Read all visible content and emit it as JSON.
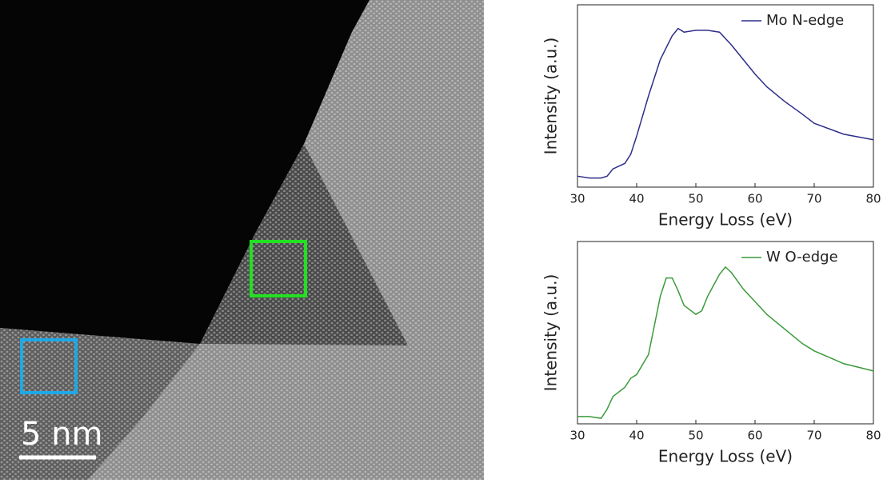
{
  "image": {
    "scale_bar_label": "5 nm"
  },
  "chart_data": [
    {
      "type": "line",
      "xlabel": "Energy Loss (eV)",
      "ylabel": "Intensity (a.u.)",
      "x": [
        30,
        32,
        34,
        35,
        36,
        38,
        39,
        40,
        42,
        44,
        46,
        47,
        48,
        50,
        52,
        54,
        56,
        58,
        60,
        62,
        65,
        68,
        70,
        75,
        80
      ],
      "series": [
        {
          "name": "Mo N-edge",
          "color": "#2e2e8a",
          "values": [
            0.06,
            0.05,
            0.05,
            0.06,
            0.1,
            0.13,
            0.18,
            0.28,
            0.5,
            0.7,
            0.83,
            0.87,
            0.85,
            0.86,
            0.86,
            0.85,
            0.78,
            0.7,
            0.62,
            0.55,
            0.47,
            0.4,
            0.35,
            0.29,
            0.26
          ]
        }
      ],
      "xlim": [
        30,
        80
      ],
      "xticks": [
        30,
        40,
        50,
        60,
        70,
        80
      ],
      "ylim": [
        0,
        1
      ],
      "legend": "upper-right"
    },
    {
      "type": "line",
      "xlabel": "Energy Loss (eV)",
      "ylabel": "Intensity (a.u.)",
      "x": [
        30,
        32,
        34,
        35,
        36,
        38,
        39,
        40,
        42,
        44,
        45,
        46,
        47,
        48,
        50,
        51,
        52,
        54,
        55,
        56,
        58,
        60,
        62,
        65,
        68,
        70,
        75,
        80
      ],
      "series": [
        {
          "name": "W O-edge",
          "color": "#3a9a3a",
          "values": [
            0.04,
            0.04,
            0.03,
            0.08,
            0.15,
            0.2,
            0.25,
            0.27,
            0.38,
            0.7,
            0.8,
            0.8,
            0.73,
            0.65,
            0.6,
            0.62,
            0.7,
            0.82,
            0.86,
            0.83,
            0.74,
            0.67,
            0.6,
            0.52,
            0.44,
            0.4,
            0.33,
            0.29
          ]
        }
      ],
      "xlim": [
        30,
        80
      ],
      "xticks": [
        30,
        40,
        50,
        60,
        70,
        80
      ],
      "ylim": [
        0,
        1
      ],
      "legend": "upper-right"
    }
  ]
}
